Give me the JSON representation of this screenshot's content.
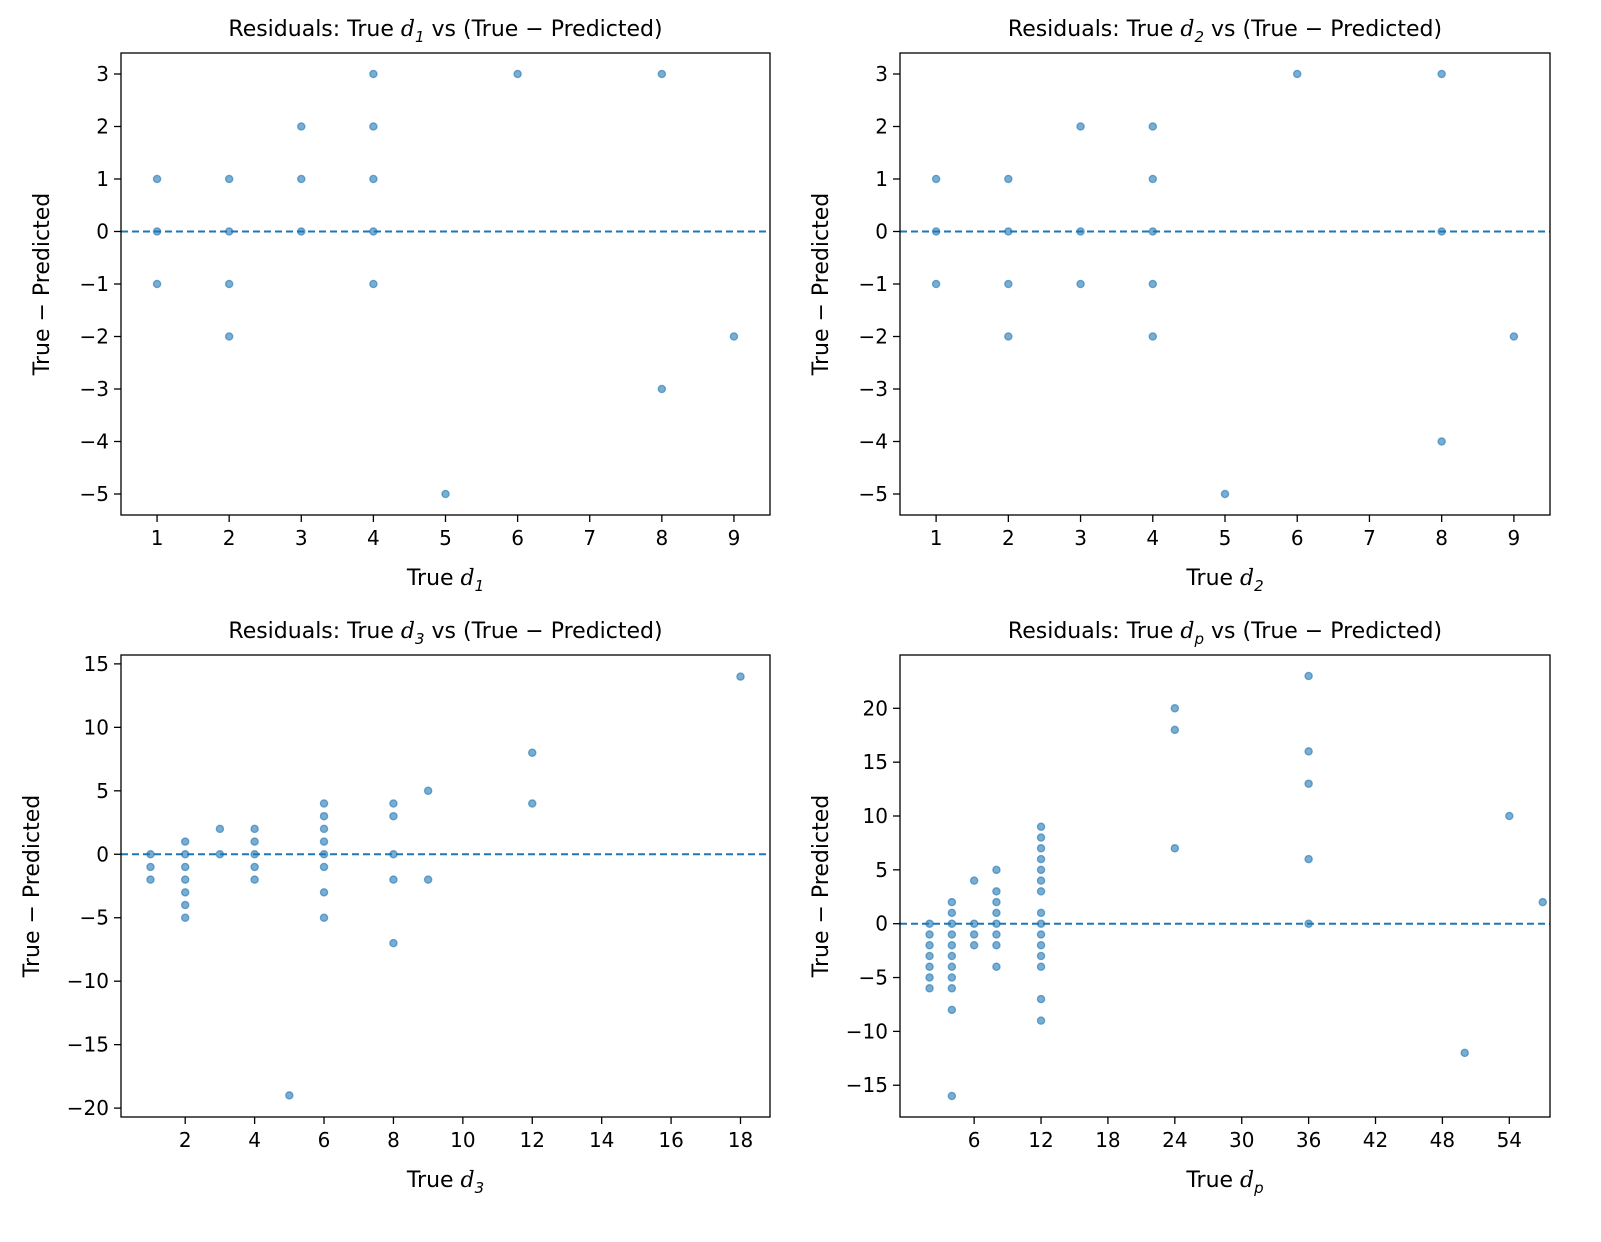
{
  "colors": {
    "points": "#1f77b4",
    "zero_line": "#1f77b4"
  },
  "chart_data": [
    {
      "type": "scatter",
      "title": {
        "prefix": "Residuals: True ",
        "var": "d",
        "sub": "1",
        "suffix": " vs (True − Predicted)"
      },
      "xlabel": {
        "prefix": "True ",
        "var": "d",
        "sub": "1"
      },
      "ylabel": "True − Predicted",
      "xlim": [
        0.5,
        9.5
      ],
      "ylim": [
        -5.4,
        3.4
      ],
      "xticks": [
        1,
        2,
        3,
        4,
        5,
        6,
        7,
        8,
        9
      ],
      "yticks": [
        -5,
        -4,
        -3,
        -2,
        -1,
        0,
        1,
        2,
        3
      ],
      "reference_line": 0,
      "points": [
        [
          1,
          1
        ],
        [
          1,
          0
        ],
        [
          1,
          -1
        ],
        [
          2,
          1
        ],
        [
          2,
          0
        ],
        [
          2,
          -1
        ],
        [
          2,
          -2
        ],
        [
          3,
          2
        ],
        [
          3,
          1
        ],
        [
          3,
          0
        ],
        [
          4,
          3
        ],
        [
          4,
          2
        ],
        [
          4,
          1
        ],
        [
          4,
          0
        ],
        [
          4,
          -1
        ],
        [
          5,
          -5
        ],
        [
          6,
          3
        ],
        [
          8,
          3
        ],
        [
          8,
          -3
        ],
        [
          9,
          -2
        ]
      ]
    },
    {
      "type": "scatter",
      "title": {
        "prefix": "Residuals: True ",
        "var": "d",
        "sub": "2",
        "suffix": " vs (True − Predicted)"
      },
      "xlabel": {
        "prefix": "True ",
        "var": "d",
        "sub": "2"
      },
      "ylabel": "True − Predicted",
      "xlim": [
        0.5,
        9.5
      ],
      "ylim": [
        -5.4,
        3.4
      ],
      "xticks": [
        1,
        2,
        3,
        4,
        5,
        6,
        7,
        8,
        9
      ],
      "yticks": [
        -5,
        -4,
        -3,
        -2,
        -1,
        0,
        1,
        2,
        3
      ],
      "reference_line": 0,
      "points": [
        [
          1,
          1
        ],
        [
          1,
          0
        ],
        [
          1,
          -1
        ],
        [
          2,
          1
        ],
        [
          2,
          0
        ],
        [
          2,
          -1
        ],
        [
          2,
          -2
        ],
        [
          3,
          2
        ],
        [
          3,
          0
        ],
        [
          3,
          -1
        ],
        [
          4,
          2
        ],
        [
          4,
          1
        ],
        [
          4,
          0
        ],
        [
          4,
          -1
        ],
        [
          4,
          -2
        ],
        [
          5,
          -5
        ],
        [
          6,
          3
        ],
        [
          8,
          3
        ],
        [
          8,
          0
        ],
        [
          8,
          -4
        ],
        [
          9,
          -2
        ]
      ]
    },
    {
      "type": "scatter",
      "title": {
        "prefix": "Residuals: True ",
        "var": "d",
        "sub": "3",
        "suffix": " vs (True − Predicted)"
      },
      "xlabel": {
        "prefix": "True ",
        "var": "d",
        "sub": "3"
      },
      "ylabel": "True − Predicted",
      "xlim": [
        0.15,
        18.85
      ],
      "ylim": [
        -20.7,
        15.7
      ],
      "xticks": [
        2,
        4,
        6,
        8,
        10,
        12,
        14,
        16,
        18
      ],
      "yticks": [
        -20,
        -15,
        -10,
        -5,
        0,
        5,
        10,
        15
      ],
      "reference_line": 0,
      "points": [
        [
          1,
          0
        ],
        [
          1,
          -1
        ],
        [
          1,
          -2
        ],
        [
          2,
          1
        ],
        [
          2,
          0
        ],
        [
          2,
          -1
        ],
        [
          2,
          -2
        ],
        [
          2,
          -3
        ],
        [
          2,
          -4
        ],
        [
          2,
          -5
        ],
        [
          3,
          2
        ],
        [
          3,
          0
        ],
        [
          4,
          2
        ],
        [
          4,
          1
        ],
        [
          4,
          0
        ],
        [
          4,
          -1
        ],
        [
          4,
          -2
        ],
        [
          5,
          -19
        ],
        [
          6,
          4
        ],
        [
          6,
          3
        ],
        [
          6,
          2
        ],
        [
          6,
          1
        ],
        [
          6,
          0
        ],
        [
          6,
          -1
        ],
        [
          6,
          -3
        ],
        [
          6,
          -5
        ],
        [
          8,
          4
        ],
        [
          8,
          3
        ],
        [
          8,
          0
        ],
        [
          8,
          -2
        ],
        [
          8,
          -7
        ],
        [
          9,
          5
        ],
        [
          9,
          -2
        ],
        [
          12,
          8
        ],
        [
          12,
          4
        ],
        [
          18,
          14
        ]
      ]
    },
    {
      "type": "scatter",
      "title": {
        "prefix": "Residuals: True ",
        "var": "d",
        "sub": "p",
        "suffix": " vs (True − Predicted)"
      },
      "xlabel": {
        "prefix": "True ",
        "var": "d",
        "sub": "p"
      },
      "ylabel": "True − Predicted",
      "xlim": [
        -0.65,
        57.65
      ],
      "ylim": [
        -17.95,
        24.95
      ],
      "xticks": [
        6,
        12,
        18,
        24,
        30,
        36,
        42,
        48,
        54
      ],
      "yticks": [
        -15,
        -10,
        -5,
        0,
        5,
        10,
        15,
        20
      ],
      "reference_line": 0,
      "points": [
        [
          2,
          0
        ],
        [
          2,
          -1
        ],
        [
          2,
          -2
        ],
        [
          2,
          -3
        ],
        [
          2,
          -4
        ],
        [
          2,
          -5
        ],
        [
          2,
          -6
        ],
        [
          4,
          2
        ],
        [
          4,
          1
        ],
        [
          4,
          0
        ],
        [
          4,
          -1
        ],
        [
          4,
          -2
        ],
        [
          4,
          -3
        ],
        [
          4,
          -4
        ],
        [
          4,
          -5
        ],
        [
          4,
          -6
        ],
        [
          4,
          -8
        ],
        [
          4,
          -16
        ],
        [
          6,
          4
        ],
        [
          6,
          0
        ],
        [
          6,
          -1
        ],
        [
          6,
          -2
        ],
        [
          8,
          5
        ],
        [
          8,
          3
        ],
        [
          8,
          2
        ],
        [
          8,
          1
        ],
        [
          8,
          0
        ],
        [
          8,
          -1
        ],
        [
          8,
          -2
        ],
        [
          8,
          -4
        ],
        [
          12,
          9
        ],
        [
          12,
          8
        ],
        [
          12,
          7
        ],
        [
          12,
          6
        ],
        [
          12,
          5
        ],
        [
          12,
          4
        ],
        [
          12,
          3
        ],
        [
          12,
          1
        ],
        [
          12,
          0
        ],
        [
          12,
          -1
        ],
        [
          12,
          -2
        ],
        [
          12,
          -3
        ],
        [
          12,
          -4
        ],
        [
          12,
          -7
        ],
        [
          12,
          -9
        ],
        [
          24,
          20
        ],
        [
          24,
          18
        ],
        [
          24,
          7
        ],
        [
          36,
          23
        ],
        [
          36,
          16
        ],
        [
          36,
          13
        ],
        [
          36,
          6
        ],
        [
          36,
          0
        ],
        [
          50,
          -12
        ],
        [
          54,
          10
        ],
        [
          57,
          2
        ]
      ]
    }
  ]
}
